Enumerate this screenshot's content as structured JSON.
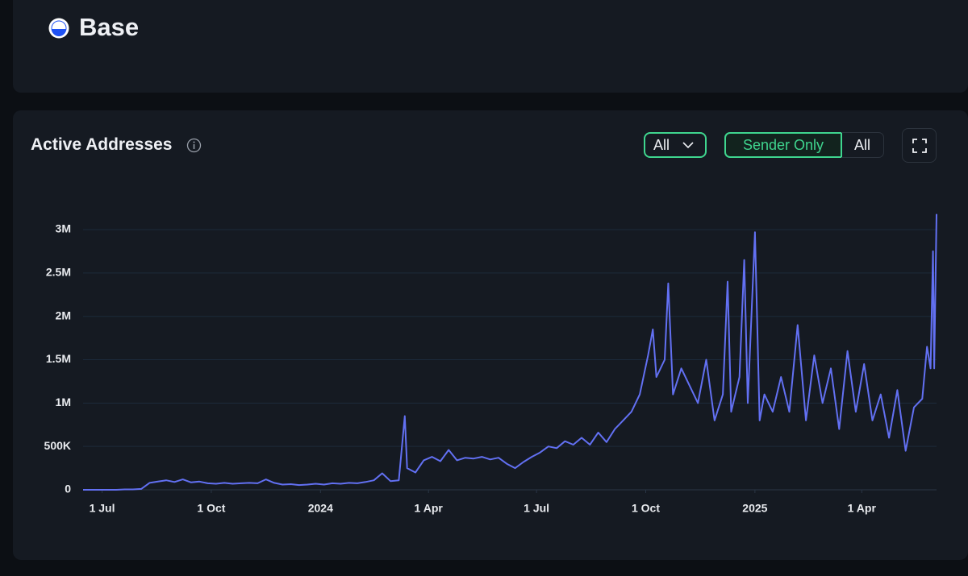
{
  "header": {
    "title": "Base"
  },
  "controls": {
    "dropdown": "All",
    "toggle": [
      "Sender Only",
      "All"
    ]
  },
  "chart_data": {
    "type": "line",
    "title": "Active Addresses",
    "color": "#6270f2",
    "grid": true,
    "x": [
      "2023-06-15",
      "2023-06-22",
      "2023-06-29",
      "2023-07-06",
      "2023-07-13",
      "2023-07-20",
      "2023-07-27",
      "2023-08-03",
      "2023-08-10",
      "2023-08-17",
      "2023-08-24",
      "2023-08-31",
      "2023-09-07",
      "2023-09-14",
      "2023-09-21",
      "2023-09-28",
      "2023-10-05",
      "2023-10-12",
      "2023-10-19",
      "2023-10-26",
      "2023-11-02",
      "2023-11-09",
      "2023-11-16",
      "2023-11-23",
      "2023-11-30",
      "2023-12-07",
      "2023-12-14",
      "2023-12-21",
      "2023-12-28",
      "2024-01-04",
      "2024-01-11",
      "2024-01-18",
      "2024-01-25",
      "2024-02-01",
      "2024-02-08",
      "2024-02-15",
      "2024-02-22",
      "2024-02-29",
      "2024-03-07",
      "2024-03-12",
      "2024-03-14",
      "2024-03-21",
      "2024-03-28",
      "2024-04-04",
      "2024-04-11",
      "2024-04-18",
      "2024-04-25",
      "2024-05-02",
      "2024-05-09",
      "2024-05-16",
      "2024-05-23",
      "2024-05-30",
      "2024-06-06",
      "2024-06-13",
      "2024-06-20",
      "2024-06-27",
      "2024-07-04",
      "2024-07-11",
      "2024-07-18",
      "2024-07-25",
      "2024-08-01",
      "2024-08-08",
      "2024-08-15",
      "2024-08-22",
      "2024-08-29",
      "2024-09-05",
      "2024-09-12",
      "2024-09-19",
      "2024-09-26",
      "2024-10-03",
      "2024-10-07",
      "2024-10-10",
      "2024-10-17",
      "2024-10-20",
      "2024-10-24",
      "2024-10-31",
      "2024-11-07",
      "2024-11-14",
      "2024-11-21",
      "2024-11-28",
      "2024-12-05",
      "2024-12-09",
      "2024-12-12",
      "2024-12-19",
      "2024-12-23",
      "2024-12-26",
      "2025-01-01",
      "2025-01-05",
      "2025-01-09",
      "2025-01-16",
      "2025-01-23",
      "2025-01-30",
      "2025-02-06",
      "2025-02-13",
      "2025-02-20",
      "2025-02-27",
      "2025-03-06",
      "2025-03-13",
      "2025-03-20",
      "2025-03-27",
      "2025-04-03",
      "2025-04-10",
      "2025-04-17",
      "2025-04-24",
      "2025-05-01",
      "2025-05-08",
      "2025-05-15",
      "2025-05-22",
      "2025-05-26",
      "2025-05-29",
      "2025-05-31",
      "2025-06-01",
      "2025-06-03"
    ],
    "values": [
      0,
      0,
      0,
      0,
      0,
      5000,
      5000,
      10000,
      80000,
      95000,
      110000,
      90000,
      120000,
      85000,
      95000,
      75000,
      70000,
      80000,
      70000,
      75000,
      80000,
      75000,
      120000,
      80000,
      60000,
      65000,
      55000,
      60000,
      70000,
      60000,
      75000,
      70000,
      80000,
      75000,
      90000,
      110000,
      190000,
      100000,
      110000,
      850000,
      250000,
      200000,
      340000,
      380000,
      330000,
      460000,
      340000,
      370000,
      360000,
      380000,
      350000,
      370000,
      300000,
      250000,
      320000,
      380000,
      430000,
      500000,
      480000,
      560000,
      520000,
      600000,
      520000,
      660000,
      550000,
      700000,
      800000,
      900000,
      1100000,
      1550000,
      1850000,
      1300000,
      1500000,
      2380000,
      1100000,
      1400000,
      1200000,
      1000000,
      1500000,
      800000,
      1100000,
      2400000,
      900000,
      1300000,
      2650000,
      1000000,
      2970000,
      800000,
      1100000,
      900000,
      1300000,
      900000,
      1900000,
      800000,
      1550000,
      1000000,
      1400000,
      700000,
      1600000,
      900000,
      1450000,
      800000,
      1100000,
      600000,
      1150000,
      450000,
      950000,
      1050000,
      1650000,
      1400000,
      2750000,
      1400000,
      3180000
    ],
    "xlim": [
      "2023-06-15",
      "2025-06-03"
    ],
    "xticks": [
      {
        "value": "2023-07-01",
        "label": "1 Jul"
      },
      {
        "value": "2023-10-01",
        "label": "1 Oct"
      },
      {
        "value": "2024-01-01",
        "label": "2024"
      },
      {
        "value": "2024-04-01",
        "label": "1 Apr"
      },
      {
        "value": "2024-07-01",
        "label": "1 Jul"
      },
      {
        "value": "2024-10-01",
        "label": "1 Oct"
      },
      {
        "value": "2025-01-01",
        "label": "2025"
      },
      {
        "value": "2025-04-01",
        "label": "1 Apr"
      }
    ],
    "ylim": [
      0,
      3200000
    ],
    "yticks": [
      0,
      {
        "value": 500000,
        "label": "500K"
      },
      {
        "value": 1000000,
        "label": "1M"
      },
      {
        "value": 1500000,
        "label": "1.5M"
      },
      {
        "value": 2000000,
        "label": "2M"
      },
      {
        "value": 2500000,
        "label": "2.5M"
      },
      {
        "value": 3000000,
        "label": "3M"
      }
    ]
  }
}
